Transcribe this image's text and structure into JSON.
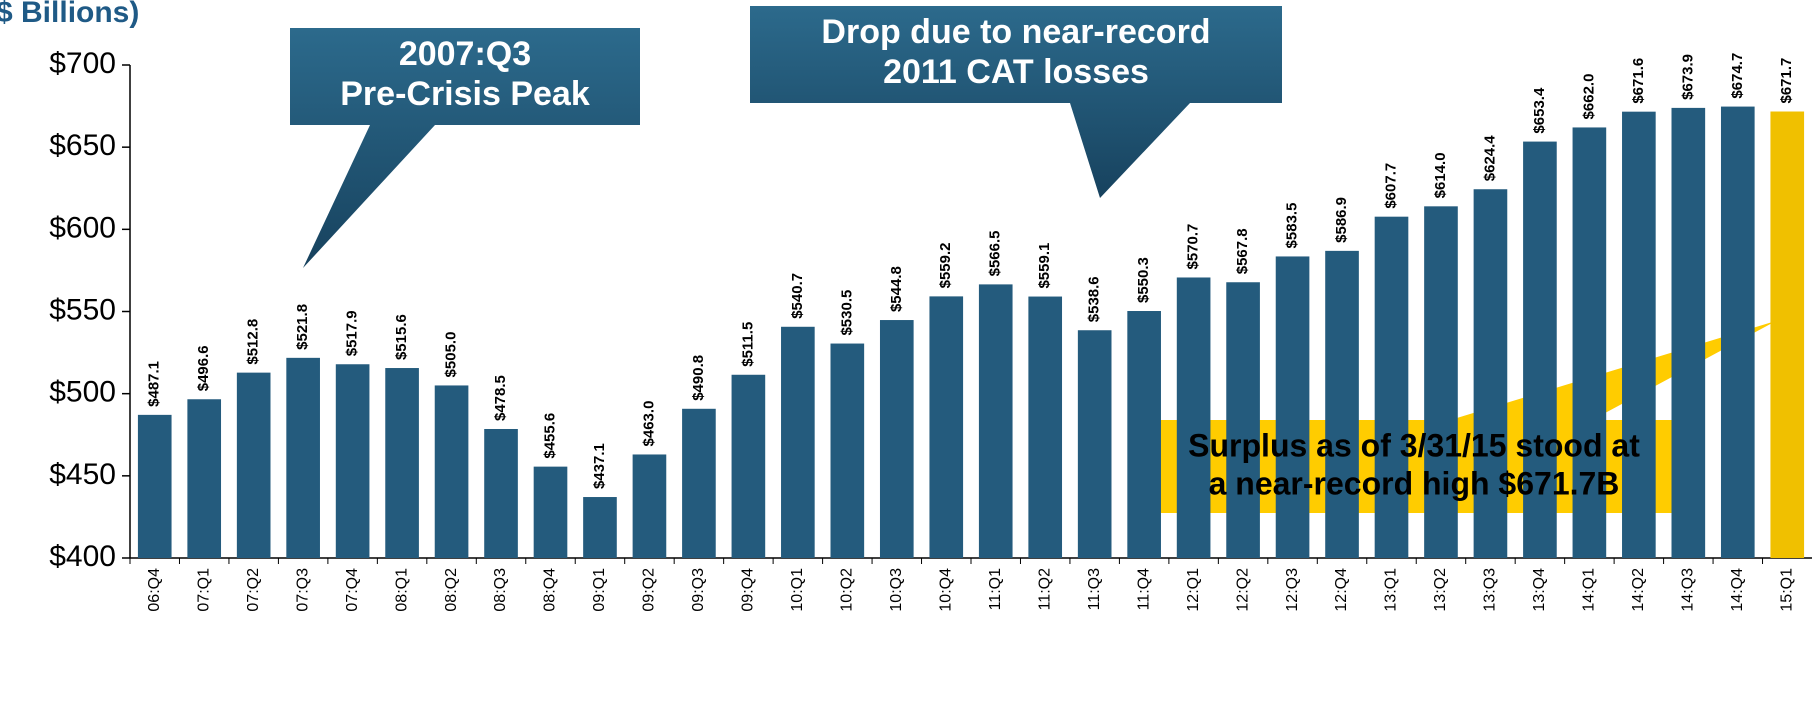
{
  "chart_data": {
    "type": "bar",
    "title": "$ Billions)",
    "categories": [
      "06:Q4",
      "07:Q1",
      "07:Q2",
      "07:Q3",
      "07:Q4",
      "08:Q1",
      "08:Q2",
      "08:Q3",
      "08:Q4",
      "09:Q1",
      "09:Q2",
      "09:Q3",
      "09:Q4",
      "10:Q1",
      "10:Q2",
      "10:Q3",
      "10:Q4",
      "11:Q1",
      "11:Q2",
      "11:Q3",
      "11:Q4",
      "12:Q1",
      "12:Q2",
      "12:Q3",
      "12:Q4",
      "13:Q1",
      "13:Q2",
      "13:Q3",
      "13:Q4",
      "14:Q1",
      "14:Q2",
      "14:Q3",
      "14:Q4",
      "15:Q1"
    ],
    "values": [
      487.1,
      496.6,
      512.8,
      521.8,
      517.9,
      515.6,
      505.0,
      478.5,
      455.6,
      437.1,
      463.0,
      490.8,
      511.5,
      540.7,
      530.5,
      544.8,
      559.2,
      566.5,
      559.1,
      538.6,
      550.3,
      570.7,
      567.8,
      583.5,
      586.9,
      607.7,
      614.0,
      624.4,
      653.4,
      662.0,
      671.6,
      673.9,
      674.7,
      671.7
    ],
    "value_labels": [
      "$487.1",
      "$496.6",
      "$512.8",
      "$521.8",
      "$517.9",
      "$515.6",
      "$505.0",
      "$478.5",
      "$455.6",
      "$437.1",
      "$463.0",
      "$490.8",
      "$511.5",
      "$540.7",
      "$530.5",
      "$544.8",
      "$559.2",
      "$566.5",
      "$559.1",
      "$538.6",
      "$550.3",
      "$570.7",
      "$567.8",
      "$583.5",
      "$586.9",
      "$607.7",
      "$614.0",
      "$624.4",
      "$653.4",
      "$662.0",
      "$671.6",
      "$673.9",
      "$674.7",
      "$671.7"
    ],
    "colors": [
      "#245b7d",
      "#245b7d",
      "#245b7d",
      "#245b7d",
      "#245b7d",
      "#245b7d",
      "#245b7d",
      "#245b7d",
      "#245b7d",
      "#245b7d",
      "#245b7d",
      "#245b7d",
      "#245b7d",
      "#245b7d",
      "#245b7d",
      "#245b7d",
      "#245b7d",
      "#245b7d",
      "#245b7d",
      "#245b7d",
      "#245b7d",
      "#245b7d",
      "#245b7d",
      "#245b7d",
      "#245b7d",
      "#245b7d",
      "#245b7d",
      "#245b7d",
      "#245b7d",
      "#245b7d",
      "#245b7d",
      "#245b7d",
      "#245b7d",
      "#f0c000"
    ],
    "ylim": [
      400,
      700
    ],
    "yticks": [
      {
        "value": 400,
        "label": "$400"
      },
      {
        "value": 450,
        "label": "$450"
      },
      {
        "value": 500,
        "label": "$500"
      },
      {
        "value": 550,
        "label": "$550"
      },
      {
        "value": 600,
        "label": "$600"
      },
      {
        "value": 650,
        "label": "$650"
      },
      {
        "value": 700,
        "label": "$700"
      }
    ],
    "annotations": [
      [
        "2007:Q3",
        "Pre-Crisis Peak"
      ],
      [
        "Drop due to near-record",
        "2011 CAT losses"
      ],
      [
        "Surplus as of 3/31/15 stood at",
        "a near-record high $671.7B"
      ]
    ]
  }
}
